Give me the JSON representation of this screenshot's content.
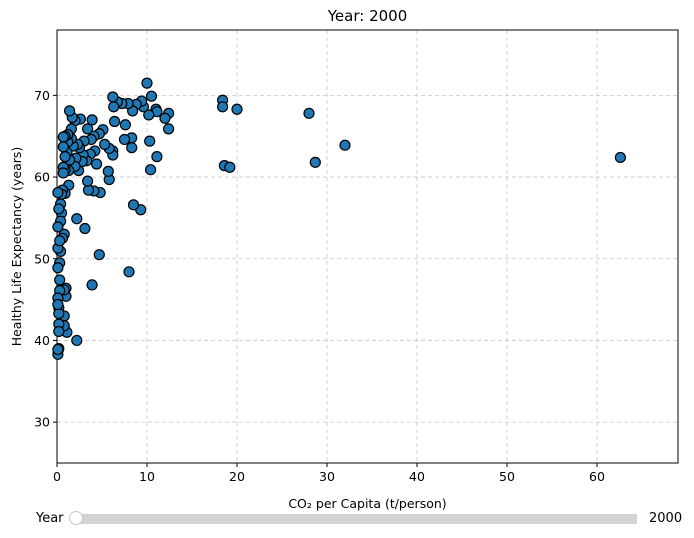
{
  "chart_data": {
    "type": "scatter",
    "title": "Year: 2000",
    "xlabel": "CO₂ per Capita (t/person)",
    "ylabel": "Healthy Life Expectancy (years)",
    "xlim": [
      0,
      69
    ],
    "ylim": [
      25,
      78
    ],
    "xticks": [
      0,
      10,
      20,
      30,
      40,
      50,
      60
    ],
    "yticks": [
      30,
      40,
      50,
      60,
      70
    ],
    "grid": true,
    "marker_color": "#1f77b4",
    "marker_edge_color": "#000000",
    "points": [
      [
        62.6,
        62.4
      ],
      [
        32.0,
        63.9
      ],
      [
        28.7,
        61.8
      ],
      [
        28.0,
        67.8
      ],
      [
        20.0,
        68.3
      ],
      [
        18.4,
        69.4
      ],
      [
        18.4,
        68.6
      ],
      [
        18.6,
        61.4
      ],
      [
        19.2,
        61.2
      ],
      [
        12.4,
        67.8
      ],
      [
        12.4,
        65.9
      ],
      [
        12.0,
        67.2
      ],
      [
        11.0,
        68.3
      ],
      [
        11.1,
        68.0
      ],
      [
        11.1,
        62.5
      ],
      [
        10.5,
        69.9
      ],
      [
        10.2,
        67.6
      ],
      [
        10.3,
        64.4
      ],
      [
        10.0,
        71.5
      ],
      [
        10.4,
        60.9
      ],
      [
        9.6,
        68.6
      ],
      [
        9.4,
        69.3
      ],
      [
        9.3,
        56.0
      ],
      [
        8.8,
        68.9
      ],
      [
        8.4,
        68.1
      ],
      [
        8.3,
        64.8
      ],
      [
        8.3,
        63.6
      ],
      [
        8.5,
        56.6
      ],
      [
        8.0,
        48.4
      ],
      [
        7.9,
        69.0
      ],
      [
        7.6,
        66.4
      ],
      [
        7.5,
        64.6
      ],
      [
        7.2,
        69.0
      ],
      [
        6.7,
        69.2
      ],
      [
        6.4,
        66.8
      ],
      [
        6.3,
        68.6
      ],
      [
        6.2,
        69.8
      ],
      [
        6.2,
        63.2
      ],
      [
        6.2,
        62.7
      ],
      [
        5.8,
        63.5
      ],
      [
        5.8,
        59.7
      ],
      [
        5.7,
        60.7
      ],
      [
        5.3,
        64.0
      ],
      [
        5.1,
        65.8
      ],
      [
        4.7,
        65.3
      ],
      [
        4.8,
        58.1
      ],
      [
        4.7,
        50.5
      ],
      [
        4.4,
        61.6
      ],
      [
        4.2,
        63.2
      ],
      [
        4.1,
        65.0
      ],
      [
        4.1,
        58.3
      ],
      [
        3.9,
        46.8
      ],
      [
        3.9,
        67.0
      ],
      [
        3.8,
        64.6
      ],
      [
        3.7,
        62.8
      ],
      [
        3.5,
        58.4
      ],
      [
        3.4,
        59.5
      ],
      [
        3.4,
        65.9
      ],
      [
        3.3,
        62.0
      ],
      [
        3.1,
        53.7
      ],
      [
        3.0,
        64.4
      ],
      [
        2.9,
        62.7
      ],
      [
        2.8,
        61.9
      ],
      [
        2.6,
        67.1
      ],
      [
        2.5,
        63.6
      ],
      [
        2.4,
        60.8
      ],
      [
        2.3,
        64.0
      ],
      [
        2.2,
        54.9
      ],
      [
        2.2,
        40.0
      ],
      [
        2.1,
        62.3
      ],
      [
        2.0,
        61.3
      ],
      [
        2.0,
        66.9
      ],
      [
        1.8,
        63.8
      ],
      [
        1.7,
        67.3
      ],
      [
        1.6,
        65.9
      ],
      [
        1.6,
        64.7
      ],
      [
        1.4,
        68.1
      ],
      [
        1.4,
        62.1
      ],
      [
        1.3,
        60.8
      ],
      [
        1.3,
        59.0
      ],
      [
        1.2,
        64.3
      ],
      [
        1.2,
        65.2
      ],
      [
        1.1,
        63.0
      ],
      [
        1.1,
        41.0
      ],
      [
        1.0,
        45.4
      ],
      [
        1.0,
        46.4
      ],
      [
        0.9,
        62.5
      ],
      [
        0.9,
        65.0
      ],
      [
        0.9,
        60.9
      ],
      [
        0.9,
        58.0
      ],
      [
        0.8,
        53.0
      ],
      [
        0.8,
        43.0
      ],
      [
        0.8,
        41.8
      ],
      [
        0.8,
        46.2
      ],
      [
        0.7,
        64.9
      ],
      [
        0.7,
        63.7
      ],
      [
        0.7,
        61.2
      ],
      [
        0.7,
        60.5
      ],
      [
        0.6,
        58.4
      ],
      [
        0.6,
        52.5
      ],
      [
        0.5,
        57.9
      ],
      [
        0.5,
        55.6
      ],
      [
        0.4,
        56.7
      ],
      [
        0.4,
        54.6
      ],
      [
        0.4,
        50.9
      ],
      [
        0.3,
        49.5
      ],
      [
        0.3,
        47.4
      ],
      [
        0.3,
        46.1
      ],
      [
        0.2,
        44.0
      ],
      [
        0.2,
        43.3
      ],
      [
        0.2,
        42.0
      ],
      [
        0.2,
        41.1
      ],
      [
        0.2,
        39.0
      ],
      [
        0.1,
        38.3
      ],
      [
        0.1,
        38.9
      ],
      [
        0.1,
        45.2
      ],
      [
        0.1,
        48.9
      ],
      [
        0.1,
        51.3
      ],
      [
        0.1,
        53.9
      ],
      [
        0.1,
        58.1
      ],
      [
        0.2,
        56.1
      ],
      [
        0.3,
        52.2
      ],
      [
        0.1,
        44.4
      ]
    ]
  },
  "slider": {
    "label": "Year",
    "value_text": "2000"
  }
}
